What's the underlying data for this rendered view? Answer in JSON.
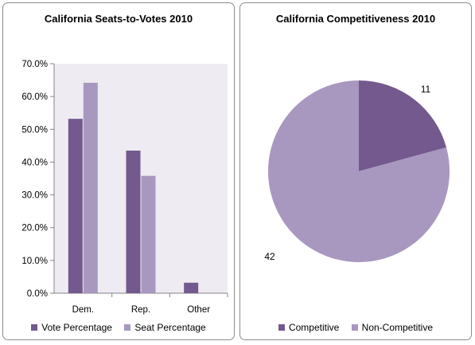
{
  "colors": {
    "vote": "#73598e",
    "seat": "#a898bf",
    "competitive": "#73598e",
    "noncompetitive": "#a898bf",
    "plotbg": "#eeebf3"
  },
  "chart_data": [
    {
      "type": "bar",
      "title": "California Seats-to-Votes 2010",
      "categories": [
        "Dem.",
        "Rep.",
        "Other"
      ],
      "series": [
        {
          "name": "Vote Percentage",
          "values": [
            53.2,
            43.5,
            3.2
          ]
        },
        {
          "name": "Seat Percentage",
          "values": [
            64.2,
            35.8,
            0.0
          ]
        }
      ],
      "yticks": [
        "0.0%",
        "10.0%",
        "20.0%",
        "30.0%",
        "40.0%",
        "50.0%",
        "60.0%",
        "70.0%"
      ],
      "ylim": [
        0,
        70
      ],
      "grid": false,
      "legend": "bottom"
    },
    {
      "type": "pie",
      "title": "California Competitiveness 2010",
      "labels": [
        "Competitive",
        "Non-Competitive"
      ],
      "values": [
        11,
        42
      ],
      "data_labels": [
        "11",
        "42"
      ],
      "legend": "bottom"
    }
  ]
}
